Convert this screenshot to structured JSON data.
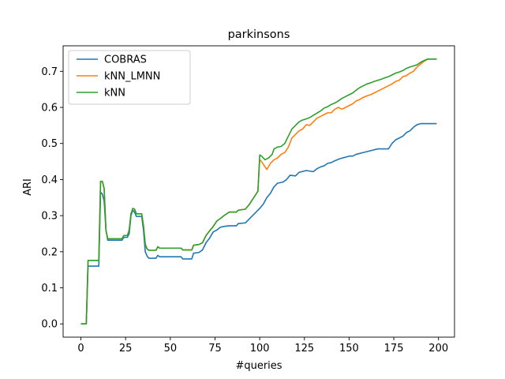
{
  "chart_data": {
    "type": "line",
    "title": "parkinsons",
    "xlabel": "#queries",
    "ylabel": "ARI",
    "xlim": [
      -9.95,
      208.95
    ],
    "ylim": [
      -0.0367,
      0.7707
    ],
    "xticks": [
      0,
      25,
      50,
      75,
      100,
      125,
      150,
      175,
      200
    ],
    "yticks": [
      0.0,
      0.1,
      0.2,
      0.3,
      0.4,
      0.5,
      0.6,
      0.7
    ],
    "ytick_labels": [
      "0.0",
      "0.1",
      "0.2",
      "0.3",
      "0.4",
      "0.5",
      "0.6",
      "0.7"
    ],
    "grid": false,
    "legend": "top-left",
    "series": [
      {
        "name": "COBRAS",
        "color": "#1f77b4",
        "points": [
          [
            0,
            0.0
          ],
          [
            3,
            0.0
          ],
          [
            4,
            0.16
          ],
          [
            10,
            0.16
          ],
          [
            11,
            0.365
          ],
          [
            12,
            0.36
          ],
          [
            13,
            0.34
          ],
          [
            14,
            0.26
          ],
          [
            15,
            0.232
          ],
          [
            23,
            0.232
          ],
          [
            24,
            0.24
          ],
          [
            26,
            0.24
          ],
          [
            27,
            0.25
          ],
          [
            28,
            0.3
          ],
          [
            29,
            0.315
          ],
          [
            30,
            0.31
          ],
          [
            31,
            0.298
          ],
          [
            34,
            0.298
          ],
          [
            35,
            0.26
          ],
          [
            36,
            0.2
          ],
          [
            37,
            0.188
          ],
          [
            38,
            0.182
          ],
          [
            42,
            0.182
          ],
          [
            43,
            0.19
          ],
          [
            44,
            0.186
          ],
          [
            56,
            0.186
          ],
          [
            57,
            0.18
          ],
          [
            62,
            0.18
          ],
          [
            63,
            0.196
          ],
          [
            66,
            0.198
          ],
          [
            68,
            0.205
          ],
          [
            70,
            0.225
          ],
          [
            72,
            0.238
          ],
          [
            74,
            0.255
          ],
          [
            76,
            0.26
          ],
          [
            78,
            0.268
          ],
          [
            80,
            0.27
          ],
          [
            83,
            0.272
          ],
          [
            87,
            0.272
          ],
          [
            88,
            0.278
          ],
          [
            92,
            0.28
          ],
          [
            94,
            0.29
          ],
          [
            96,
            0.3
          ],
          [
            98,
            0.31
          ],
          [
            100,
            0.32
          ],
          [
            102,
            0.332
          ],
          [
            104,
            0.35
          ],
          [
            106,
            0.362
          ],
          [
            108,
            0.38
          ],
          [
            110,
            0.39
          ],
          [
            113,
            0.393
          ],
          [
            115,
            0.4
          ],
          [
            117,
            0.412
          ],
          [
            120,
            0.41
          ],
          [
            122,
            0.42
          ],
          [
            126,
            0.425
          ],
          [
            130,
            0.422
          ],
          [
            132,
            0.43
          ],
          [
            134,
            0.435
          ],
          [
            136,
            0.438
          ],
          [
            138,
            0.445
          ],
          [
            140,
            0.447
          ],
          [
            142,
            0.452
          ],
          [
            145,
            0.458
          ],
          [
            148,
            0.462
          ],
          [
            150,
            0.465
          ],
          [
            152,
            0.465
          ],
          [
            154,
            0.47
          ],
          [
            158,
            0.475
          ],
          [
            162,
            0.48
          ],
          [
            166,
            0.485
          ],
          [
            172,
            0.485
          ],
          [
            174,
            0.5
          ],
          [
            176,
            0.51
          ],
          [
            178,
            0.515
          ],
          [
            180,
            0.52
          ],
          [
            182,
            0.53
          ],
          [
            184,
            0.535
          ],
          [
            186,
            0.545
          ],
          [
            188,
            0.552
          ],
          [
            190,
            0.555
          ],
          [
            199,
            0.555
          ]
        ]
      },
      {
        "name": "kNN_LMNN",
        "color": "#ff7f0e",
        "points": [
          [
            0,
            0.0
          ],
          [
            3,
            0.0
          ],
          [
            4,
            0.176
          ],
          [
            10,
            0.176
          ],
          [
            11,
            0.395
          ],
          [
            12,
            0.395
          ],
          [
            13,
            0.375
          ],
          [
            14,
            0.26
          ],
          [
            15,
            0.236
          ],
          [
            23,
            0.236
          ],
          [
            24,
            0.245
          ],
          [
            26,
            0.245
          ],
          [
            27,
            0.26
          ],
          [
            28,
            0.305
          ],
          [
            29,
            0.32
          ],
          [
            30,
            0.318
          ],
          [
            31,
            0.305
          ],
          [
            34,
            0.305
          ],
          [
            35,
            0.272
          ],
          [
            36,
            0.22
          ],
          [
            37,
            0.208
          ],
          [
            38,
            0.204
          ],
          [
            42,
            0.204
          ],
          [
            43,
            0.214
          ],
          [
            44,
            0.21
          ],
          [
            56,
            0.21
          ],
          [
            57,
            0.205
          ],
          [
            62,
            0.205
          ],
          [
            63,
            0.218
          ],
          [
            66,
            0.22
          ],
          [
            68,
            0.225
          ],
          [
            70,
            0.245
          ],
          [
            72,
            0.258
          ],
          [
            74,
            0.27
          ],
          [
            76,
            0.285
          ],
          [
            78,
            0.292
          ],
          [
            80,
            0.3
          ],
          [
            83,
            0.31
          ],
          [
            87,
            0.31
          ],
          [
            88,
            0.315
          ],
          [
            92,
            0.318
          ],
          [
            94,
            0.33
          ],
          [
            96,
            0.345
          ],
          [
            98,
            0.36
          ],
          [
            99,
            0.368
          ],
          [
            100,
            0.455
          ],
          [
            101,
            0.45
          ],
          [
            103,
            0.435
          ],
          [
            104,
            0.428
          ],
          [
            106,
            0.445
          ],
          [
            108,
            0.455
          ],
          [
            110,
            0.46
          ],
          [
            112,
            0.47
          ],
          [
            114,
            0.475
          ],
          [
            116,
            0.49
          ],
          [
            118,
            0.515
          ],
          [
            120,
            0.525
          ],
          [
            122,
            0.535
          ],
          [
            124,
            0.54
          ],
          [
            126,
            0.552
          ],
          [
            128,
            0.55
          ],
          [
            130,
            0.56
          ],
          [
            132,
            0.57
          ],
          [
            134,
            0.575
          ],
          [
            136,
            0.58
          ],
          [
            138,
            0.585
          ],
          [
            140,
            0.585
          ],
          [
            142,
            0.595
          ],
          [
            144,
            0.6
          ],
          [
            146,
            0.595
          ],
          [
            148,
            0.6
          ],
          [
            150,
            0.605
          ],
          [
            152,
            0.61
          ],
          [
            154,
            0.618
          ],
          [
            156,
            0.622
          ],
          [
            158,
            0.628
          ],
          [
            160,
            0.632
          ],
          [
            162,
            0.635
          ],
          [
            164,
            0.64
          ],
          [
            166,
            0.645
          ],
          [
            168,
            0.65
          ],
          [
            170,
            0.655
          ],
          [
            172,
            0.66
          ],
          [
            174,
            0.665
          ],
          [
            176,
            0.672
          ],
          [
            178,
            0.675
          ],
          [
            180,
            0.685
          ],
          [
            182,
            0.688
          ],
          [
            184,
            0.695
          ],
          [
            186,
            0.7
          ],
          [
            188,
            0.712
          ],
          [
            190,
            0.72
          ],
          [
            192,
            0.728
          ],
          [
            194,
            0.734
          ],
          [
            199,
            0.734
          ]
        ]
      },
      {
        "name": "kNN",
        "color": "#2ca02c",
        "points": [
          [
            0,
            0.0
          ],
          [
            3,
            0.0
          ],
          [
            4,
            0.176
          ],
          [
            10,
            0.176
          ],
          [
            11,
            0.395
          ],
          [
            12,
            0.395
          ],
          [
            13,
            0.375
          ],
          [
            14,
            0.26
          ],
          [
            15,
            0.236
          ],
          [
            23,
            0.236
          ],
          [
            24,
            0.245
          ],
          [
            26,
            0.245
          ],
          [
            27,
            0.26
          ],
          [
            28,
            0.305
          ],
          [
            29,
            0.32
          ],
          [
            30,
            0.318
          ],
          [
            31,
            0.305
          ],
          [
            34,
            0.305
          ],
          [
            35,
            0.272
          ],
          [
            36,
            0.22
          ],
          [
            37,
            0.208
          ],
          [
            38,
            0.204
          ],
          [
            42,
            0.204
          ],
          [
            43,
            0.214
          ],
          [
            44,
            0.21
          ],
          [
            56,
            0.21
          ],
          [
            57,
            0.205
          ],
          [
            62,
            0.205
          ],
          [
            63,
            0.218
          ],
          [
            66,
            0.22
          ],
          [
            68,
            0.225
          ],
          [
            70,
            0.245
          ],
          [
            72,
            0.258
          ],
          [
            74,
            0.27
          ],
          [
            76,
            0.285
          ],
          [
            78,
            0.292
          ],
          [
            80,
            0.3
          ],
          [
            83,
            0.31
          ],
          [
            87,
            0.31
          ],
          [
            88,
            0.315
          ],
          [
            92,
            0.318
          ],
          [
            94,
            0.33
          ],
          [
            96,
            0.345
          ],
          [
            98,
            0.36
          ],
          [
            99,
            0.368
          ],
          [
            100,
            0.468
          ],
          [
            101,
            0.465
          ],
          [
            103,
            0.455
          ],
          [
            105,
            0.46
          ],
          [
            107,
            0.47
          ],
          [
            108,
            0.485
          ],
          [
            110,
            0.49
          ],
          [
            112,
            0.492
          ],
          [
            114,
            0.5
          ],
          [
            116,
            0.52
          ],
          [
            118,
            0.54
          ],
          [
            120,
            0.55
          ],
          [
            122,
            0.56
          ],
          [
            124,
            0.565
          ],
          [
            126,
            0.568
          ],
          [
            128,
            0.572
          ],
          [
            130,
            0.578
          ],
          [
            132,
            0.584
          ],
          [
            134,
            0.59
          ],
          [
            136,
            0.598
          ],
          [
            138,
            0.602
          ],
          [
            140,
            0.608
          ],
          [
            142,
            0.612
          ],
          [
            144,
            0.618
          ],
          [
            146,
            0.625
          ],
          [
            148,
            0.63
          ],
          [
            150,
            0.635
          ],
          [
            152,
            0.64
          ],
          [
            154,
            0.648
          ],
          [
            156,
            0.655
          ],
          [
            158,
            0.66
          ],
          [
            160,
            0.665
          ],
          [
            162,
            0.668
          ],
          [
            164,
            0.672
          ],
          [
            166,
            0.675
          ],
          [
            168,
            0.678
          ],
          [
            170,
            0.682
          ],
          [
            172,
            0.685
          ],
          [
            174,
            0.69
          ],
          [
            176,
            0.695
          ],
          [
            178,
            0.698
          ],
          [
            180,
            0.702
          ],
          [
            182,
            0.708
          ],
          [
            184,
            0.712
          ],
          [
            186,
            0.715
          ],
          [
            188,
            0.718
          ],
          [
            190,
            0.725
          ],
          [
            192,
            0.73
          ],
          [
            194,
            0.734
          ],
          [
            199,
            0.734
          ]
        ]
      }
    ]
  }
}
